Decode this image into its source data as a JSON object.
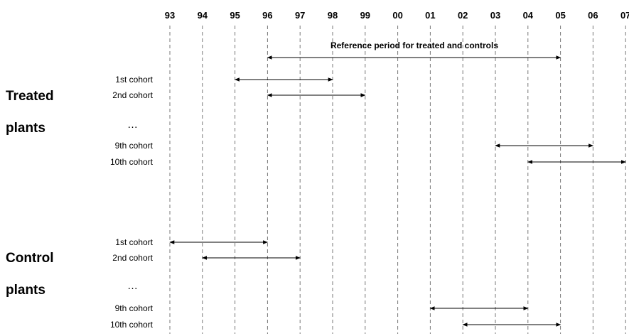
{
  "years": [
    "93",
    "94",
    "95",
    "96",
    "97",
    "98",
    "99",
    "00",
    "01",
    "02",
    "03",
    "04",
    "05",
    "06",
    "07"
  ],
  "reference": {
    "label": "Reference period for treated and controls",
    "from": "96",
    "to": "05"
  },
  "treated": {
    "label_line1": "Treated",
    "label_line2": "plants",
    "ellipsis": "…",
    "cohorts": [
      {
        "label": "1st cohort",
        "from": "95",
        "to": "98"
      },
      {
        "label": "2nd cohort",
        "from": "96",
        "to": "99"
      },
      {
        "label": "9th cohort",
        "from": "03",
        "to": "06"
      },
      {
        "label": "10th cohort",
        "from": "04",
        "to": "07"
      }
    ]
  },
  "control": {
    "label_line1": "Control",
    "label_line2": "plants",
    "ellipsis": "…",
    "cohorts": [
      {
        "label": "1st cohort",
        "from": "93",
        "to": "96"
      },
      {
        "label": "2nd cohort",
        "from": "94",
        "to": "97"
      },
      {
        "label": "9th cohort",
        "from": "01",
        "to": "04"
      },
      {
        "label": "10th cohort",
        "from": "02",
        "to": "05"
      }
    ]
  }
}
